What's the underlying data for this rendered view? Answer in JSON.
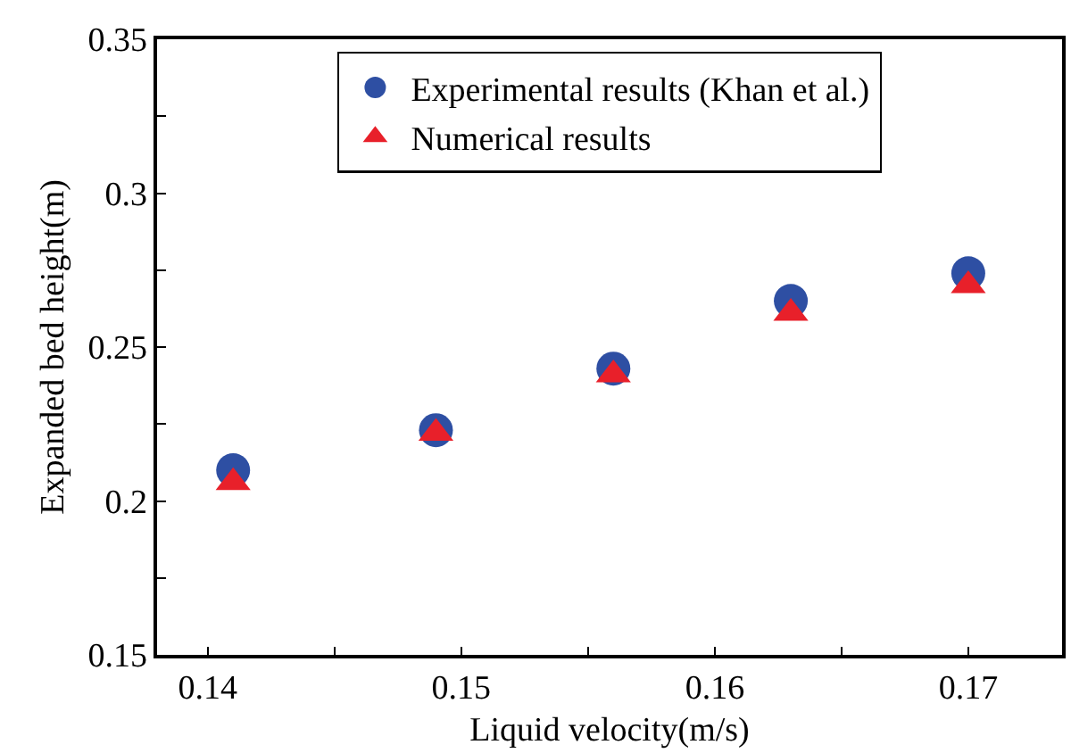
{
  "chart_data": {
    "type": "scatter",
    "xlabel": "Liquid velocity(m/s)",
    "ylabel": "Expanded bed height(m)",
    "x": [
      0.141,
      0.149,
      0.156,
      0.163,
      0.17
    ],
    "series": [
      {
        "name": "Experimental results (Khan et al.)",
        "color": "#2e4fa3",
        "marker": "circle",
        "values": [
          0.21,
          0.223,
          0.243,
          0.265,
          0.274
        ]
      },
      {
        "name": "Numerical results",
        "color": "#e8202a",
        "marker": "triangle",
        "values": [
          0.206,
          0.222,
          0.241,
          0.261,
          0.27
        ]
      }
    ],
    "xlim": [
      0.138,
      0.1737
    ],
    "ylim": [
      0.15,
      0.35
    ],
    "xticks": [
      0.14,
      {
        "value": 0.145,
        "label": null
      },
      0.15,
      {
        "value": 0.155,
        "label": null
      },
      0.16,
      {
        "value": 0.165,
        "label": null
      },
      0.17
    ],
    "yticks": [
      0.15,
      {
        "value": 0.175,
        "label": null
      },
      0.2,
      {
        "value": 0.225,
        "label": null
      },
      0.25,
      {
        "value": 0.275,
        "label": null
      },
      0.3,
      {
        "value": 0.325,
        "label": null
      },
      0.35
    ],
    "grid": false,
    "legend": "top"
  }
}
